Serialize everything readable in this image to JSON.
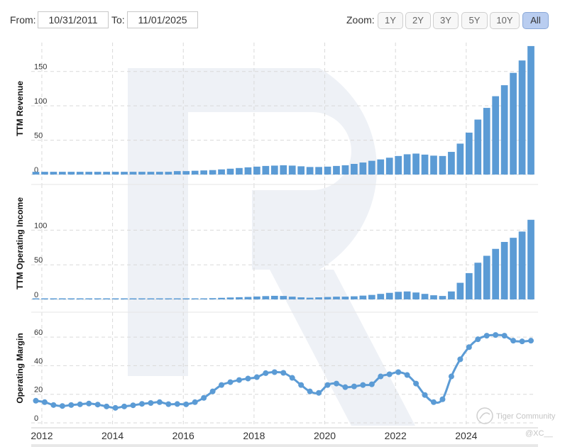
{
  "controls": {
    "from_label": "From:",
    "from_value": "10/31/2011",
    "to_label": "To:",
    "to_value": "11/01/2025",
    "zoom_label": "Zoom:",
    "zoom_options": [
      "1Y",
      "2Y",
      "3Y",
      "5Y",
      "10Y",
      "All"
    ],
    "zoom_selected": "All"
  },
  "watermark": {
    "community_text": "Tiger Community",
    "handle_text": "@XC__"
  },
  "colors": {
    "series": "#5b9bd5",
    "grid": "#d9d9d9",
    "active_button": "#b9cdf0"
  },
  "chart_data": [
    {
      "type": "bar",
      "ylabel": "TTM Revenue",
      "ylim": [
        0,
        190
      ],
      "yticks": [
        0,
        50,
        100,
        150
      ],
      "x": [
        2011.83,
        2012.08,
        2012.33,
        2012.58,
        2012.83,
        2013.08,
        2013.33,
        2013.58,
        2013.83,
        2014.08,
        2014.33,
        2014.58,
        2014.83,
        2015.08,
        2015.33,
        2015.58,
        2015.83,
        2016.08,
        2016.33,
        2016.58,
        2016.83,
        2017.08,
        2017.33,
        2017.58,
        2017.83,
        2018.08,
        2018.33,
        2018.58,
        2018.83,
        2019.08,
        2019.33,
        2019.58,
        2019.83,
        2020.08,
        2020.33,
        2020.58,
        2020.83,
        2021.08,
        2021.33,
        2021.58,
        2021.83,
        2022.08,
        2022.33,
        2022.58,
        2022.83,
        2023.08,
        2023.33,
        2023.58,
        2023.83,
        2024.08,
        2024.33,
        2024.58,
        2024.83,
        2025.08,
        2025.33,
        2025.58,
        2025.83
      ],
      "values": [
        4.0,
        4.0,
        4.0,
        4.0,
        4.0,
        4.0,
        4.0,
        4.0,
        4.0,
        4.0,
        4.0,
        4.0,
        4.0,
        4.0,
        4.0,
        4.0,
        5.0,
        5.0,
        5.5,
        6.0,
        6.5,
        7.5,
        8.5,
        9.5,
        10.5,
        11.5,
        12.5,
        13.0,
        13.5,
        13.0,
        12.0,
        11.0,
        11.0,
        11.5,
        12.5,
        13.5,
        15.5,
        17.5,
        20.0,
        22.0,
        24.5,
        27.0,
        29.5,
        30.5,
        29.0,
        27.5,
        27.0,
        33.0,
        45.0,
        61.0,
        80.0,
        97.0,
        114.0,
        130.0,
        148.0,
        166.0,
        187.0
      ]
    },
    {
      "type": "bar",
      "ylabel": "TTM Operating Income",
      "ylim": [
        0,
        125
      ],
      "yticks": [
        0,
        50,
        100
      ],
      "x": [
        2011.83,
        2012.08,
        2012.33,
        2012.58,
        2012.83,
        2013.08,
        2013.33,
        2013.58,
        2013.83,
        2014.08,
        2014.33,
        2014.58,
        2014.83,
        2015.08,
        2015.33,
        2015.58,
        2015.83,
        2016.08,
        2016.33,
        2016.58,
        2016.83,
        2017.08,
        2017.33,
        2017.58,
        2017.83,
        2018.08,
        2018.33,
        2018.58,
        2018.83,
        2019.08,
        2019.33,
        2019.58,
        2019.83,
        2020.08,
        2020.33,
        2020.58,
        2020.83,
        2021.08,
        2021.33,
        2021.58,
        2021.83,
        2022.08,
        2022.33,
        2022.58,
        2022.83,
        2023.08,
        2023.33,
        2023.58,
        2023.83,
        2024.08,
        2024.33,
        2024.58,
        2024.83,
        2025.08,
        2025.33,
        2025.58,
        2025.83
      ],
      "values": [
        0.5,
        0.5,
        0.5,
        0.5,
        0.5,
        0.5,
        0.5,
        0.5,
        0.5,
        0.5,
        0.5,
        0.5,
        0.5,
        0.5,
        0.5,
        0.5,
        0.8,
        0.8,
        1.0,
        1.2,
        1.8,
        2.3,
        2.8,
        3.2,
        3.6,
        4.2,
        4.8,
        5.2,
        5.0,
        4.0,
        3.0,
        2.5,
        3.0,
        3.5,
        4.0,
        4.0,
        4.5,
        5.5,
        6.5,
        8.0,
        9.5,
        11.0,
        11.5,
        10.0,
        8.0,
        6.0,
        5.0,
        11.5,
        24.0,
        38.0,
        53.0,
        63.0,
        73.0,
        83.0,
        89.0,
        98.0,
        115.0
      ]
    },
    {
      "type": "line",
      "ylabel": "Operating Margin",
      "ylim": [
        0,
        70
      ],
      "yticks": [
        0,
        20,
        40,
        60
      ],
      "x": [
        2011.83,
        2012.08,
        2012.33,
        2012.58,
        2012.83,
        2013.08,
        2013.33,
        2013.58,
        2013.83,
        2014.08,
        2014.33,
        2014.58,
        2014.83,
        2015.08,
        2015.33,
        2015.58,
        2015.83,
        2016.08,
        2016.33,
        2016.58,
        2016.83,
        2017.08,
        2017.33,
        2017.58,
        2017.83,
        2018.08,
        2018.33,
        2018.58,
        2018.83,
        2019.08,
        2019.33,
        2019.58,
        2019.83,
        2020.08,
        2020.33,
        2020.58,
        2020.83,
        2021.08,
        2021.33,
        2021.58,
        2021.83,
        2022.08,
        2022.33,
        2022.58,
        2022.83,
        2023.08,
        2023.33,
        2023.58,
        2023.83,
        2024.08,
        2024.33,
        2024.58,
        2024.83,
        2025.08,
        2025.33,
        2025.58,
        2025.83
      ],
      "values": [
        15.5,
        14.5,
        12.5,
        11.8,
        12.5,
        13.0,
        13.5,
        12.8,
        11.5,
        10.5,
        11.5,
        12.3,
        13.3,
        13.9,
        14.5,
        13.1,
        13.2,
        13.0,
        14.5,
        17.5,
        22.0,
        26.5,
        28.5,
        30.0,
        31.0,
        32.0,
        34.8,
        35.5,
        35.0,
        31.5,
        26.5,
        22.0,
        21.0,
        26.5,
        27.5,
        25.0,
        25.5,
        26.5,
        27.0,
        32.5,
        34.0,
        35.5,
        33.5,
        27.5,
        19.5,
        14.5,
        16.5,
        32.5,
        44.5,
        53.0,
        58.5,
        61.0,
        61.5,
        61.0,
        57.5,
        57.0,
        57.5
      ]
    }
  ],
  "x_axis": {
    "ticks": [
      {
        "value": 2012,
        "label": "2012"
      },
      {
        "value": 2014,
        "label": "2014"
      },
      {
        "value": 2016,
        "label": "2016"
      },
      {
        "value": 2018,
        "label": "2018"
      },
      {
        "value": 2020,
        "label": "2020"
      },
      {
        "value": 2022,
        "label": "2022"
      },
      {
        "value": 2024,
        "label": "2024"
      }
    ],
    "range": [
      2011.7,
      2025.95
    ]
  }
}
